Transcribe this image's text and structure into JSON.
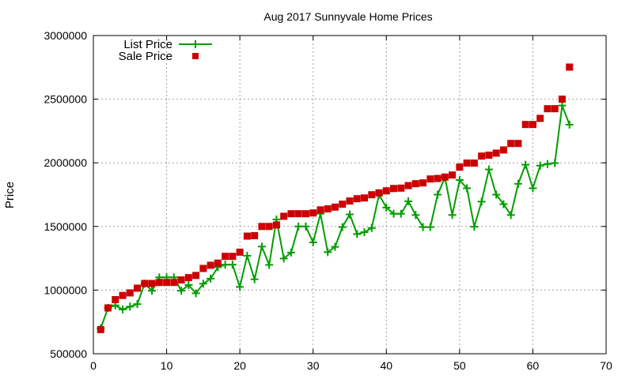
{
  "chart_data": {
    "type": "line",
    "title": "Aug 2017 Sunnyvale Home Prices",
    "xlabel": "",
    "ylabel": "Price",
    "xlim": [
      0,
      70
    ],
    "ylim": [
      500000,
      3000000
    ],
    "xticks": [
      0,
      10,
      20,
      30,
      40,
      50,
      60,
      70
    ],
    "yticks": [
      500000,
      1000000,
      1500000,
      2000000,
      2500000,
      3000000
    ],
    "grid": true,
    "legend_position": "top-left",
    "x": [
      1,
      2,
      3,
      4,
      5,
      6,
      7,
      8,
      9,
      10,
      11,
      12,
      13,
      14,
      15,
      16,
      17,
      18,
      19,
      20,
      21,
      22,
      23,
      24,
      25,
      26,
      27,
      28,
      29,
      30,
      31,
      32,
      33,
      34,
      35,
      36,
      37,
      38,
      39,
      40,
      41,
      42,
      43,
      44,
      45,
      46,
      47,
      48,
      49,
      50,
      51,
      52,
      53,
      54,
      55,
      56,
      57,
      58,
      59,
      60,
      61,
      62,
      63,
      64,
      65
    ],
    "series": [
      {
        "name": "List Price",
        "style": "linespoints",
        "marker": "plus",
        "color": "#009e00",
        "values": [
          700000,
          860000,
          880000,
          848000,
          870000,
          890000,
          1050000,
          995000,
          1100000,
          1100000,
          1100000,
          995000,
          1040000,
          975000,
          1050000,
          1090000,
          1180000,
          1200000,
          1200000,
          1025000,
          1270000,
          1085000,
          1342000,
          1198000,
          1555000,
          1248000,
          1295000,
          1500000,
          1500000,
          1375000,
          1600000,
          1298000,
          1340000,
          1495000,
          1595000,
          1440000,
          1455000,
          1488000,
          1750000,
          1648000,
          1600000,
          1600000,
          1698000,
          1590000,
          1495000,
          1495000,
          1750000,
          1885000,
          1590000,
          1865000,
          1800000,
          1498000,
          1695000,
          1948000,
          1750000,
          1675000,
          1590000,
          1835000,
          1985000,
          1800000,
          1978000,
          1990000,
          1998000,
          2450000,
          2300000
        ]
      },
      {
        "name": "Sale Price",
        "style": "points",
        "marker": "square",
        "color": "#cc0000",
        "values": [
          690000,
          860000,
          925000,
          958000,
          978000,
          1015000,
          1052000,
          1052000,
          1060000,
          1060000,
          1060000,
          1080000,
          1098000,
          1115000,
          1170000,
          1195000,
          1212000,
          1265000,
          1265000,
          1298000,
          1424000,
          1428000,
          1500000,
          1500000,
          1512000,
          1580000,
          1600000,
          1600000,
          1600000,
          1606000,
          1630000,
          1638000,
          1652000,
          1675000,
          1700000,
          1718000,
          1724000,
          1749000,
          1764000,
          1780000,
          1798000,
          1801000,
          1821000,
          1836000,
          1842000,
          1873000,
          1877000,
          1888000,
          1904000,
          1966000,
          1998000,
          1998000,
          2053000,
          2060000,
          2076000,
          2101000,
          2152000,
          2152000,
          2301000,
          2301000,
          2349000,
          2425000,
          2425000,
          2500000,
          2752000
        ]
      }
    ]
  }
}
